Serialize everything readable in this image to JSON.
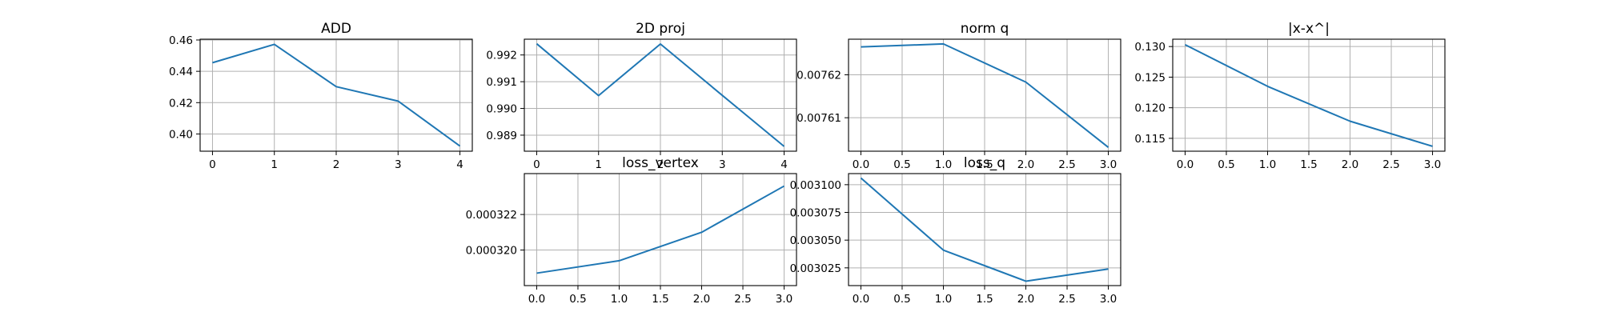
{
  "chart_data": [
    {
      "type": "line",
      "title": "ADD",
      "xlabel": "",
      "ylabel": "",
      "grid": true,
      "x": [
        0,
        1,
        2,
        3,
        4
      ],
      "series": [
        {
          "values": [
            0.4455,
            0.4572,
            0.4302,
            0.421,
            0.3923
          ]
        }
      ],
      "xlim": [
        -0.2,
        4.2
      ],
      "ylim": [
        0.389,
        0.4605
      ],
      "xticks": [
        0,
        1,
        2,
        3,
        4
      ],
      "xtick_labels": [
        "0",
        "1",
        "2",
        "3",
        "4"
      ],
      "yticks": [
        0.4,
        0.42,
        0.44,
        0.46
      ],
      "ytick_labels": [
        "0.40",
        "0.42",
        "0.44",
        "0.46"
      ],
      "color": "#1f77b4"
    },
    {
      "type": "line",
      "title": "2D proj",
      "xlabel": "",
      "ylabel": "",
      "grid": true,
      "x": [
        0,
        1,
        2,
        3,
        4
      ],
      "series": [
        {
          "values": [
            0.99242,
            0.99048,
            0.99241,
            0.99049,
            0.98858
          ]
        }
      ],
      "xlim": [
        -0.2,
        4.2
      ],
      "ylim": [
        0.9884,
        0.99259
      ],
      "xticks": [
        0,
        1,
        2,
        3,
        4
      ],
      "xtick_labels": [
        "0",
        "1",
        "2",
        "3",
        "4"
      ],
      "yticks": [
        0.989,
        0.99,
        0.991,
        0.992
      ],
      "ytick_labels": [
        "0.989",
        "0.990",
        "0.991",
        "0.992"
      ],
      "color": "#1f77b4"
    },
    {
      "type": "line",
      "title": "norm q",
      "xlabel": "",
      "ylabel": "",
      "grid": true,
      "x": [
        0,
        1,
        2,
        3
      ],
      "series": [
        {
          "values": [
            0.0076265,
            0.0076272,
            0.0076183,
            0.0076031
          ]
        }
      ],
      "xlim": [
        -0.15,
        3.15
      ],
      "ylim": [
        0.0076022,
        0.0076283
      ],
      "xticks": [
        0,
        0.5,
        1,
        1.5,
        2,
        2.5,
        3
      ],
      "xtick_labels": [
        "0.0",
        "0.5",
        "1.0",
        "1.5",
        "2.0",
        "2.5",
        "3.0"
      ],
      "yticks": [
        0.00761,
        0.00762
      ],
      "ytick_labels": [
        "0.00761",
        "0.00762"
      ],
      "color": "#1f77b4"
    },
    {
      "type": "line",
      "title": "|x-x^|",
      "xlabel": "",
      "ylabel": "",
      "grid": true,
      "x": [
        0,
        1,
        2,
        3
      ],
      "series": [
        {
          "values": [
            0.1303,
            0.1235,
            0.1178,
            0.1137
          ]
        }
      ],
      "xlim": [
        -0.15,
        3.15
      ],
      "ylim": [
        0.1129,
        0.1312
      ],
      "xticks": [
        0,
        0.5,
        1,
        1.5,
        2,
        2.5,
        3
      ],
      "xtick_labels": [
        "0.0",
        "0.5",
        "1.0",
        "1.5",
        "2.0",
        "2.5",
        "3.0"
      ],
      "yticks": [
        0.115,
        0.12,
        0.125,
        0.13
      ],
      "ytick_labels": [
        "0.115",
        "0.120",
        "0.125",
        "0.130"
      ],
      "color": "#1f77b4"
    },
    {
      "type": "line",
      "title": "loss_vertex",
      "xlabel": "",
      "ylabel": "",
      "grid": true,
      "x": [
        0,
        1,
        2,
        3
      ],
      "series": [
        {
          "values": [
            0.0003187,
            0.0003194,
            0.000321,
            0.0003236
          ]
        }
      ],
      "xlim": [
        -0.15,
        3.15
      ],
      "ylim": [
        0.000318,
        0.0003243
      ],
      "xticks": [
        0,
        0.5,
        1,
        1.5,
        2,
        2.5,
        3
      ],
      "xtick_labels": [
        "0.0",
        "0.5",
        "1.0",
        "1.5",
        "2.0",
        "2.5",
        "3.0"
      ],
      "yticks": [
        0.00032,
        0.000322
      ],
      "ytick_labels": [
        "0.000320",
        "0.000322"
      ],
      "color": "#1f77b4"
    },
    {
      "type": "line",
      "title": "loss_q",
      "xlabel": "",
      "ylabel": "",
      "grid": true,
      "x": [
        0,
        1,
        2,
        3
      ],
      "series": [
        {
          "values": [
            0.003106,
            0.003041,
            0.003013,
            0.003024
          ]
        }
      ],
      "xlim": [
        -0.15,
        3.15
      ],
      "ylim": [
        0.003009,
        0.00311
      ],
      "xticks": [
        0,
        0.5,
        1,
        1.5,
        2,
        2.5,
        3
      ],
      "xtick_labels": [
        "0.0",
        "0.5",
        "1.0",
        "1.5",
        "2.0",
        "2.5",
        "3.0"
      ],
      "yticks": [
        0.003025,
        0.00305,
        0.003075,
        0.0031
      ],
      "ytick_labels": [
        "0.003025",
        "0.003050",
        "0.003075",
        "0.003100"
      ],
      "color": "#1f77b4"
    }
  ]
}
